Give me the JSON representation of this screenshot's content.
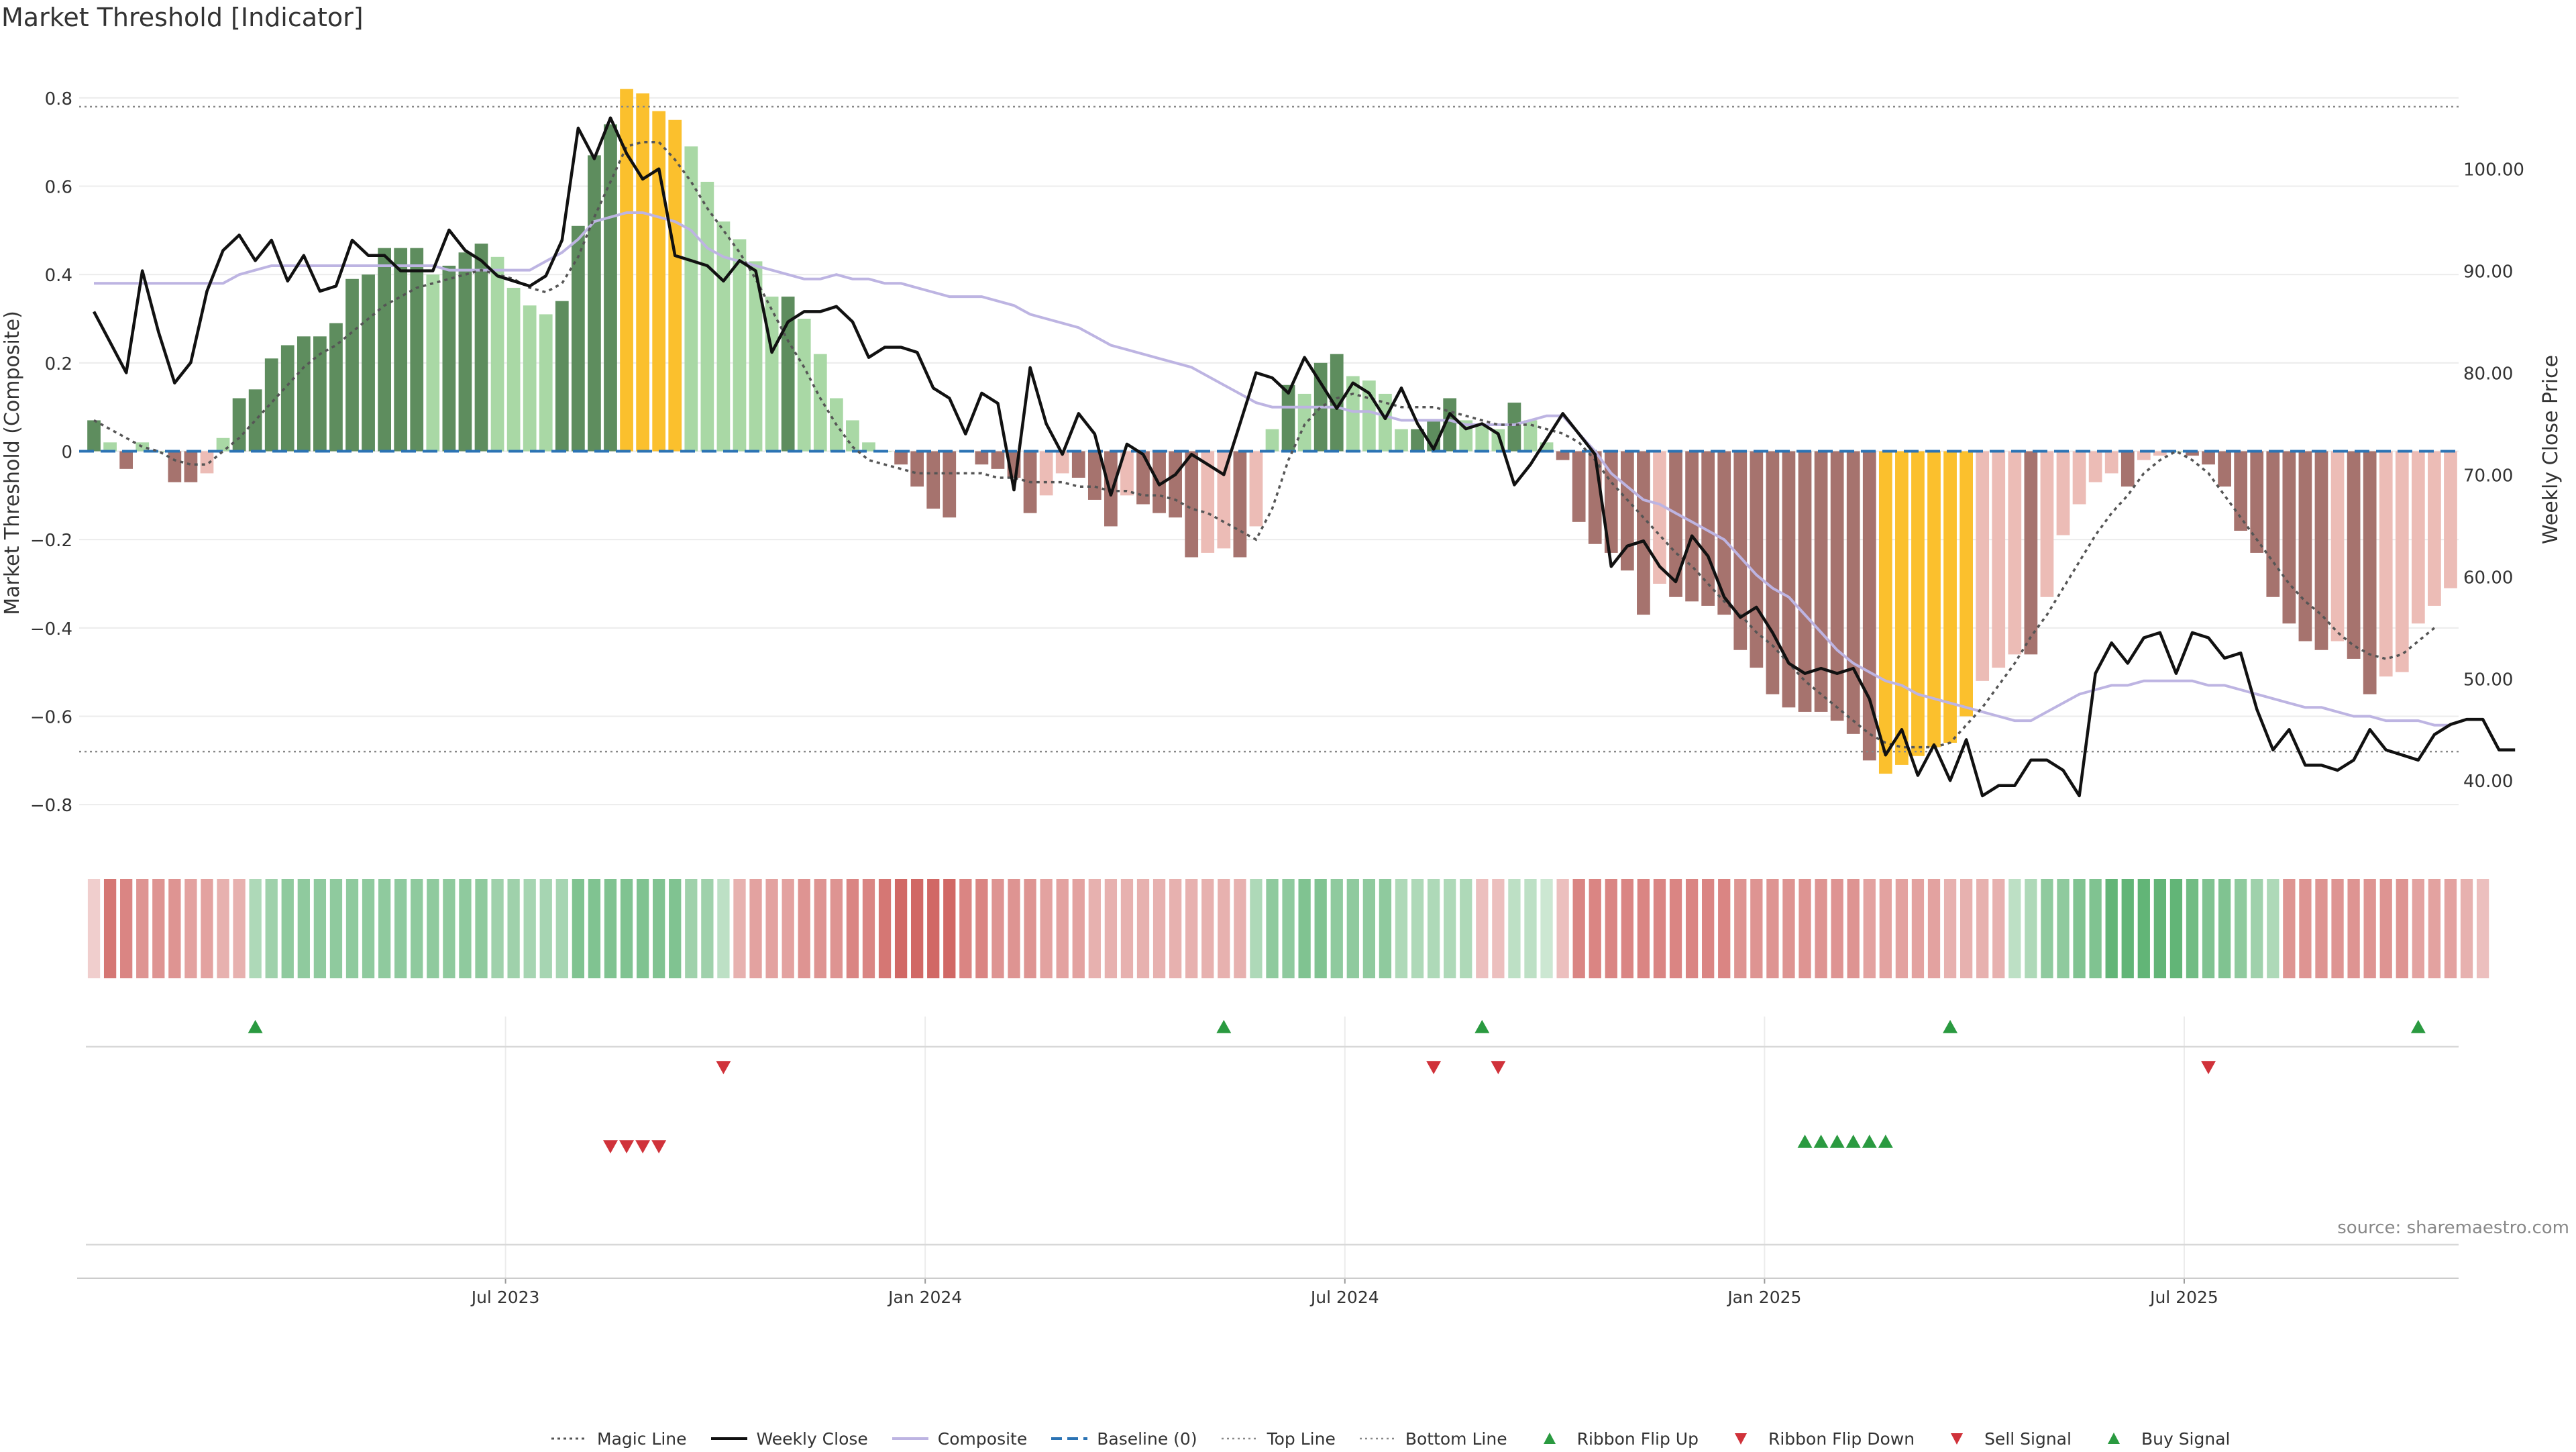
{
  "title": "Market Threshold [Indicator]",
  "source_text": "source: sharemaestro.com",
  "colors": {
    "bar_pos_strong": "#5e8d5e",
    "bar_pos_weak": "#a9d8a5",
    "bar_neg_strong": "#a6736e",
    "bar_neg_weak": "#ecbcb6",
    "bar_extreme": "#fbc02d",
    "weekly_close": "#111111",
    "composite": "#bdb4e2",
    "magic_line": "#555555",
    "baseline": "#2b73b4",
    "threshold_lines": "#888888",
    "up_marker": "#2a9a40",
    "down_marker": "#d0323a"
  },
  "legend": [
    {
      "label": "Magic Line",
      "icon": "dotted-line-icon"
    },
    {
      "label": "Weekly Close",
      "icon": "solid-line-icon"
    },
    {
      "label": "Composite",
      "icon": "lavender-line-icon"
    },
    {
      "label": "Baseline (0)",
      "icon": "dashed-line-icon"
    },
    {
      "label": "Top Line",
      "icon": "dotted-gray-line-icon"
    },
    {
      "label": "Bottom Line",
      "icon": "dotted-gray-line-icon"
    },
    {
      "label": "Ribbon Flip Up",
      "icon": "triangle-up-icon"
    },
    {
      "label": "Ribbon Flip Down",
      "icon": "triangle-down-icon"
    },
    {
      "label": "Sell Signal",
      "icon": "triangle-down-icon"
    },
    {
      "label": "Buy Signal",
      "icon": "triangle-up-icon"
    }
  ],
  "chart_data": {
    "type": "bar",
    "x_ticks": [
      "Jul 2023",
      "Jan 2024",
      "Jul 2024",
      "Jan 2025",
      "Jul 2025"
    ],
    "x_tick_week_index": [
      26,
      52,
      78,
      104,
      130
    ],
    "ylabel": "Market Threshold (Composite)",
    "ylim": [
      -0.9,
      0.9
    ],
    "y_ticks": [
      -0.8,
      -0.6,
      -0.4,
      -0.2,
      0,
      0.2,
      0.4,
      0.6,
      0.8
    ],
    "y_tick_labels": [
      "−0.8",
      "−0.6",
      "−0.4",
      "−0.2",
      "0",
      "0.2",
      "0.4",
      "0.6",
      "0.8"
    ],
    "y2label": "Weekly Close Price",
    "y2lim": [
      33.3,
      111.3
    ],
    "y2_ticks": [
      40,
      50,
      60,
      70,
      80,
      90,
      100
    ],
    "y2_tick_labels": [
      "40.00",
      "50.00",
      "60.00",
      "70.00",
      "80.00",
      "90.00",
      "100.00"
    ],
    "top_line": 0.78,
    "bottom_line": -0.68,
    "baseline": 0,
    "series": [
      {
        "name": "Composite",
        "kind": "bars",
        "values": [
          0.07,
          0.02,
          -0.04,
          0.02,
          0,
          -0.07,
          -0.07,
          -0.05,
          0.03,
          0.12,
          0.14,
          0.21,
          0.24,
          0.26,
          0.26,
          0.29,
          0.39,
          0.4,
          0.46,
          0.46,
          0.46,
          0.4,
          0.42,
          0.45,
          0.47,
          0.44,
          0.37,
          0.33,
          0.31,
          0.34,
          0.51,
          0.67,
          0.74,
          0.82,
          0.81,
          0.77,
          0.75,
          0.69,
          0.61,
          0.52,
          0.48,
          0.43,
          0.35,
          0.35,
          0.3,
          0.22,
          0.12,
          0.07,
          0.02,
          0,
          -0.03,
          -0.08,
          -0.13,
          -0.15,
          0,
          -0.03,
          -0.04,
          -0.06,
          -0.14,
          -0.1,
          -0.05,
          -0.06,
          -0.11,
          -0.17,
          -0.1,
          -0.12,
          -0.14,
          -0.15,
          -0.24,
          -0.23,
          -0.22,
          -0.24,
          -0.17,
          0.05,
          0.15,
          0.13,
          0.2,
          0.22,
          0.17,
          0.16,
          0.13,
          0.05,
          0.05,
          0.07,
          0.12,
          0.07,
          0.06,
          0.05,
          0.11,
          0.07,
          0.02,
          -0.02,
          -0.16,
          -0.21,
          -0.23,
          -0.27,
          -0.37,
          -0.3,
          -0.33,
          -0.34,
          -0.35,
          -0.37,
          -0.45,
          -0.49,
          -0.55,
          -0.58,
          -0.59,
          -0.59,
          -0.61,
          -0.64,
          -0.7,
          -0.73,
          -0.71,
          -0.69,
          -0.67,
          -0.66,
          -0.6,
          -0.52,
          -0.49,
          -0.46,
          -0.46,
          -0.33,
          -0.19,
          -0.12,
          -0.07,
          -0.05,
          -0.08,
          -0.02,
          -0.01,
          0,
          -0.01,
          -0.03,
          -0.08,
          -0.18,
          -0.23,
          -0.33,
          -0.39,
          -0.43,
          -0.45,
          -0.43,
          -0.47,
          -0.55,
          -0.51,
          -0.5,
          -0.39,
          -0.35,
          -0.31
        ]
      },
      {
        "name": "Weekly Close",
        "kind": "line",
        "axis": "right",
        "values": [
          86,
          83,
          80,
          90,
          84,
          79,
          81,
          88,
          92,
          93.5,
          91,
          93,
          89,
          91.5,
          88,
          88.5,
          93,
          91.5,
          91.5,
          90,
          90,
          90,
          94,
          92,
          91,
          89.5,
          89,
          88.5,
          89.5,
          93,
          104,
          101,
          105,
          101.5,
          99,
          100,
          91.5,
          91,
          90.5,
          89,
          91,
          90,
          82,
          85,
          86,
          86,
          86.5,
          85,
          81.5,
          82.5,
          82.5,
          82,
          78.5,
          77.5,
          74,
          78,
          77,
          68.5,
          80.5,
          75,
          72,
          76,
          74,
          68,
          73,
          72,
          69,
          70,
          72,
          71,
          70,
          75,
          80,
          79.5,
          78,
          81.5,
          79,
          76.5,
          79,
          78,
          75.5,
          78.5,
          75,
          72.5,
          76,
          74.5,
          75,
          74,
          69,
          71,
          73.5,
          76,
          74,
          72,
          61,
          63,
          63.5,
          61,
          59.5,
          64,
          62,
          58,
          56,
          57,
          54.5,
          51.5,
          50.5,
          51,
          50.5,
          51,
          48,
          42.5,
          45,
          40.5,
          43.5,
          40,
          44,
          38.5,
          39.5,
          39.5,
          42,
          42,
          41,
          38.5,
          50.5,
          53.5,
          51.5,
          54,
          54.5,
          50.5,
          54.5,
          54,
          52,
          52.5,
          47,
          43,
          45,
          41.5,
          41.5,
          41,
          42,
          45,
          43,
          42.5,
          42,
          44.5,
          45.5,
          46,
          46,
          43,
          43
        ]
      },
      {
        "name": "Composite",
        "kind": "line",
        "values": [
          0.38,
          0.38,
          0.38,
          0.38,
          0.38,
          0.38,
          0.38,
          0.38,
          0.38,
          0.4,
          0.41,
          0.42,
          0.42,
          0.42,
          0.42,
          0.42,
          0.42,
          0.42,
          0.42,
          0.42,
          0.42,
          0.42,
          0.41,
          0.41,
          0.41,
          0.41,
          0.41,
          0.41,
          0.43,
          0.45,
          0.48,
          0.52,
          0.53,
          0.54,
          0.54,
          0.53,
          0.52,
          0.5,
          0.46,
          0.44,
          0.43,
          0.42,
          0.41,
          0.4,
          0.39,
          0.39,
          0.4,
          0.39,
          0.39,
          0.38,
          0.38,
          0.37,
          0.36,
          0.35,
          0.35,
          0.35,
          0.34,
          0.33,
          0.31,
          0.3,
          0.29,
          0.28,
          0.26,
          0.24,
          0.23,
          0.22,
          0.21,
          0.2,
          0.19,
          0.17,
          0.15,
          0.13,
          0.11,
          0.1,
          0.1,
          0.1,
          0.1,
          0.1,
          0.09,
          0.09,
          0.08,
          0.07,
          0.07,
          0.07,
          0.07,
          0.06,
          0.06,
          0.06,
          0.06,
          0.07,
          0.08,
          0.08,
          0.04,
          0,
          -0.05,
          -0.08,
          -0.11,
          -0.12,
          -0.14,
          -0.16,
          -0.18,
          -0.2,
          -0.24,
          -0.28,
          -0.31,
          -0.33,
          -0.37,
          -0.41,
          -0.45,
          -0.48,
          -0.5,
          -0.52,
          -0.53,
          -0.55,
          -0.56,
          -0.57,
          -0.58,
          -0.59,
          -0.6,
          -0.61,
          -0.61,
          -0.59,
          -0.57,
          -0.55,
          -0.54,
          -0.53,
          -0.53,
          -0.52,
          -0.52,
          -0.52,
          -0.52,
          -0.53,
          -0.53,
          -0.54,
          -0.55,
          -0.56,
          -0.57,
          -0.58,
          -0.58,
          -0.59,
          -0.6,
          -0.6,
          -0.61,
          -0.61,
          -0.61,
          -0.62,
          -0.62
        ]
      },
      {
        "name": "Magic Line",
        "kind": "line",
        "values": [
          0.07,
          0.05,
          0.03,
          0.01,
          0,
          -0.02,
          -0.03,
          -0.03,
          0,
          0.03,
          0.07,
          0.11,
          0.15,
          0.19,
          0.22,
          0.24,
          0.27,
          0.3,
          0.33,
          0.35,
          0.37,
          0.38,
          0.39,
          0.4,
          0.41,
          0.4,
          0.39,
          0.37,
          0.36,
          0.38,
          0.44,
          0.53,
          0.61,
          0.69,
          0.7,
          0.7,
          0.66,
          0.61,
          0.55,
          0.5,
          0.45,
          0.39,
          0.32,
          0.25,
          0.19,
          0.12,
          0.06,
          0.01,
          -0.02,
          -0.03,
          -0.04,
          -0.05,
          -0.05,
          -0.05,
          -0.05,
          -0.05,
          -0.06,
          -0.06,
          -0.07,
          -0.07,
          -0.07,
          -0.08,
          -0.08,
          -0.09,
          -0.09,
          -0.1,
          -0.1,
          -0.11,
          -0.13,
          -0.14,
          -0.16,
          -0.18,
          -0.2,
          -0.13,
          -0.02,
          0.06,
          0.1,
          0.12,
          0.13,
          0.12,
          0.11,
          0.1,
          0.1,
          0.1,
          0.09,
          0.08,
          0.07,
          0.06,
          0.06,
          0.06,
          0.05,
          0.04,
          0.02,
          -0.02,
          -0.07,
          -0.11,
          -0.15,
          -0.19,
          -0.23,
          -0.26,
          -0.3,
          -0.34,
          -0.37,
          -0.41,
          -0.44,
          -0.48,
          -0.52,
          -0.55,
          -0.58,
          -0.61,
          -0.64,
          -0.66,
          -0.67,
          -0.67,
          -0.67,
          -0.66,
          -0.62,
          -0.58,
          -0.53,
          -0.48,
          -0.42,
          -0.37,
          -0.31,
          -0.25,
          -0.19,
          -0.14,
          -0.1,
          -0.05,
          -0.02,
          0,
          -0.02,
          -0.05,
          -0.1,
          -0.15,
          -0.2,
          -0.25,
          -0.3,
          -0.34,
          -0.37,
          -0.41,
          -0.44,
          -0.46,
          -0.47,
          -0.46,
          -0.43,
          -0.4
        ]
      }
    ],
    "extreme_bar_ranges": [
      [
        33,
        36
      ],
      [
        111,
        116
      ]
    ],
    "ribbon_levels": [
      -0.1,
      -0.7,
      -0.6,
      -0.5,
      -0.5,
      -0.5,
      -0.4,
      -0.4,
      -0.3,
      -0.3,
      0.3,
      0.4,
      0.5,
      0.5,
      0.5,
      0.5,
      0.5,
      0.5,
      0.5,
      0.5,
      0.5,
      0.5,
      0.5,
      0.5,
      0.5,
      0.4,
      0.4,
      0.35,
      0.35,
      0.35,
      0.6,
      0.6,
      0.6,
      0.6,
      0.6,
      0.6,
      0.6,
      0.4,
      0.4,
      0.2,
      -0.3,
      -0.4,
      -0.4,
      -0.4,
      -0.5,
      -0.5,
      -0.5,
      -0.6,
      -0.6,
      -0.7,
      -0.8,
      -0.8,
      -0.8,
      -0.8,
      -0.6,
      -0.6,
      -0.5,
      -0.5,
      -0.5,
      -0.4,
      -0.4,
      -0.4,
      -0.3,
      -0.3,
      -0.3,
      -0.3,
      -0.3,
      -0.3,
      -0.3,
      -0.3,
      -0.3,
      -0.3,
      0.3,
      0.5,
      0.5,
      0.6,
      0.6,
      0.5,
      0.5,
      0.5,
      0.5,
      0.3,
      0.3,
      0.3,
      0.3,
      0.3,
      -0.2,
      -0.2,
      0.2,
      0.2,
      0.1,
      -0.2,
      -0.6,
      -0.6,
      -0.6,
      -0.6,
      -0.6,
      -0.6,
      -0.6,
      -0.6,
      -0.6,
      -0.6,
      -0.5,
      -0.5,
      -0.5,
      -0.5,
      -0.5,
      -0.5,
      -0.5,
      -0.5,
      -0.4,
      -0.4,
      -0.4,
      -0.4,
      -0.4,
      -0.3,
      -0.3,
      -0.3,
      -0.3,
      0.2,
      0.3,
      0.5,
      0.5,
      0.6,
      0.6,
      0.8,
      0.8,
      0.8,
      0.8,
      0.8,
      0.7,
      0.6,
      0.6,
      0.5,
      0.4,
      0.3,
      -0.5,
      -0.5,
      -0.5,
      -0.5,
      -0.5,
      -0.5,
      -0.5,
      -0.5,
      -0.4,
      -0.4,
      -0.4,
      -0.3,
      -0.2
    ],
    "ribbon_flip_up_weeks": [
      10,
      70,
      86,
      115,
      144
    ],
    "ribbon_flip_down_weeks": [
      39,
      83,
      87,
      131
    ],
    "sell_signal_weeks": [
      32,
      33,
      34,
      35
    ],
    "buy_signal_weeks": [
      106,
      107,
      108,
      109,
      110,
      111
    ]
  }
}
